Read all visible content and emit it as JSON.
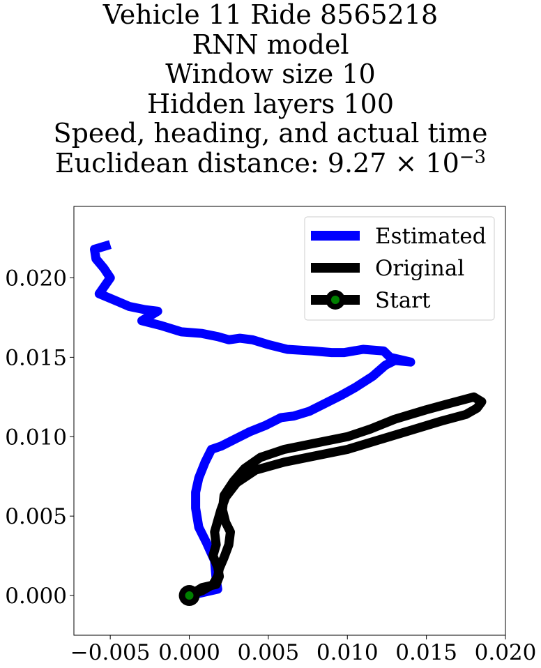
{
  "chart_data": {
    "type": "line",
    "title_lines": [
      "Vehicle 11 Ride 8565218",
      "RNN model",
      "Window size 10",
      "Hidden layers 100",
      "Speed, heading, and actual time"
    ],
    "title_metric_prefix": "Euclidean distance: 9.27",
    "title_metric_times": "×",
    "title_metric_base": "10",
    "title_metric_exponent": "−3",
    "xlabel": "",
    "ylabel": "",
    "xlim": [
      -0.0073,
      0.02
    ],
    "ylim": [
      -0.0025,
      0.0245
    ],
    "xticks": [
      -0.005,
      0.0,
      0.005,
      0.01,
      0.015,
      0.02
    ],
    "xtick_labels": [
      "−0.005",
      "0.000",
      "0.005",
      "0.010",
      "0.015",
      "0.020"
    ],
    "yticks": [
      0.0,
      0.005,
      0.01,
      0.015,
      0.02
    ],
    "ytick_labels": [
      "0.000",
      "0.005",
      "0.010",
      "0.015",
      "0.020"
    ],
    "grid": false,
    "legend_position": "top-right",
    "series": [
      {
        "name": "Estimated",
        "color": "#0000ff",
        "x": [
          0.0,
          0.0018,
          0.0017,
          0.0016,
          0.0011,
          0.0006,
          0.0004,
          0.0004,
          0.0006,
          0.001,
          0.0014,
          0.002,
          0.0028,
          0.0038,
          0.0048,
          0.0058,
          0.0066,
          0.0076,
          0.0086,
          0.0096,
          0.0105,
          0.0116,
          0.0124,
          0.013,
          0.014,
          0.0127,
          0.0123,
          0.011,
          0.0098,
          0.009,
          0.0078,
          0.0062,
          0.005,
          0.004,
          0.0032,
          0.0025,
          0.0018,
          0.0008,
          -0.0005,
          -0.0018,
          -0.003,
          -0.002,
          -0.0028,
          -0.0038,
          -0.0045,
          -0.0057,
          -0.005,
          -0.0054,
          -0.0059,
          -0.006,
          -0.005
        ],
        "y": [
          0.0,
          0.0004,
          0.001,
          0.0022,
          0.0033,
          0.0043,
          0.0055,
          0.0065,
          0.0074,
          0.0084,
          0.0092,
          0.0094,
          0.0098,
          0.0103,
          0.0107,
          0.0112,
          0.0113,
          0.0116,
          0.0121,
          0.0126,
          0.0131,
          0.0138,
          0.0145,
          0.0148,
          0.0147,
          0.015,
          0.0154,
          0.0155,
          0.0153,
          0.0153,
          0.0154,
          0.0155,
          0.0158,
          0.0161,
          0.0162,
          0.0161,
          0.0163,
          0.0165,
          0.0166,
          0.017,
          0.0173,
          0.0179,
          0.018,
          0.0182,
          0.0185,
          0.019,
          0.02,
          0.0206,
          0.0212,
          0.0218,
          0.0221
        ]
      },
      {
        "name": "Original",
        "color": "#000000",
        "x": [
          0.0,
          0.0008,
          0.0017,
          0.0019,
          0.0018,
          0.0015,
          0.0017,
          0.0016,
          0.0018,
          0.002,
          0.0023,
          0.003,
          0.0042,
          0.006,
          0.008,
          0.01,
          0.012,
          0.014,
          0.016,
          0.0175,
          0.0182,
          0.0185,
          0.018,
          0.0165,
          0.015,
          0.013,
          0.0115,
          0.01,
          0.008,
          0.006,
          0.0045,
          0.0035,
          0.0028,
          0.0022,
          0.0021,
          0.0023,
          0.0026,
          0.0025,
          0.0022,
          0.0019,
          0.0018,
          0.0015,
          0.0008,
          0.0
        ],
        "y": [
          0.0,
          0.0005,
          0.0007,
          0.0012,
          0.0018,
          0.0025,
          0.0032,
          0.004,
          0.0047,
          0.0054,
          0.0062,
          0.0071,
          0.0079,
          0.0084,
          0.0088,
          0.0092,
          0.0098,
          0.0104,
          0.011,
          0.0114,
          0.0118,
          0.0122,
          0.0125,
          0.0121,
          0.0117,
          0.0111,
          0.0105,
          0.01,
          0.0096,
          0.0092,
          0.0087,
          0.008,
          0.0072,
          0.0063,
          0.0054,
          0.0046,
          0.004,
          0.0032,
          0.0024,
          0.0017,
          0.0012,
          0.0007,
          0.0003,
          0.0
        ]
      }
    ],
    "start_marker": {
      "name": "Start",
      "x": 0.0,
      "y": 0.0,
      "edge_color": "#000000",
      "face_color": "#008000"
    }
  }
}
